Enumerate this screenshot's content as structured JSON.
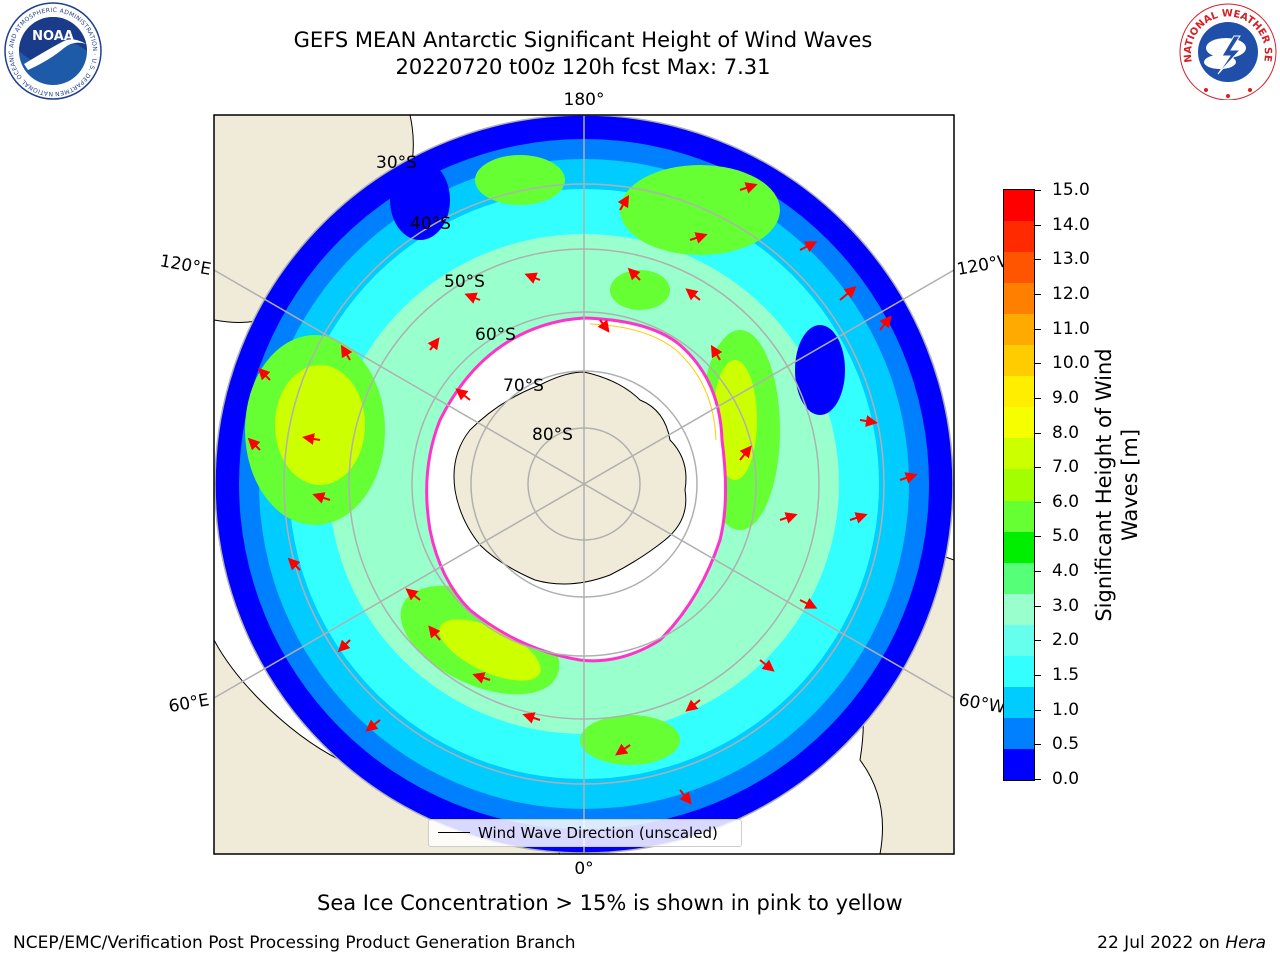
{
  "title": {
    "line1": "GEFS MEAN Antarctic Significant Height of Wind Waves",
    "line2": "20220720 t00z 120h fcst   Max: 7.31"
  },
  "map": {
    "projection": "south-polar-stereographic",
    "meridian_labels": [
      "180°",
      "120°E",
      "120°W",
      "60°E",
      "60°W",
      "0°"
    ],
    "latitude_labels": [
      "30°S",
      "40°S",
      "50°S",
      "60°S",
      "70°S",
      "80°S"
    ],
    "legend_label": "Wind Wave Direction (unscaled)",
    "arrow_color": "#ff0000",
    "land_color": "#efebd8",
    "ice_edge_colors": [
      "#ff33cc",
      "#ffcc00"
    ]
  },
  "colorbar": {
    "title": "Significant Height of Wind Waves [m]",
    "title_line1": "Significant Height of Wind",
    "title_line2": "Waves [m]",
    "ticks": [
      "15.0",
      "14.0",
      "13.0",
      "12.0",
      "11.0",
      "10.0",
      "9.0",
      "8.0",
      "7.0",
      "6.0",
      "5.0",
      "4.0",
      "3.0",
      "2.0",
      "1.5",
      "1.0",
      "0.5",
      "0.0"
    ],
    "colors_top_to_bottom": [
      "#ff0000",
      "#ff2a00",
      "#ff5500",
      "#ff7f00",
      "#ffaa00",
      "#ffcc00",
      "#ffee00",
      "#f5ff00",
      "#ccff00",
      "#a3ff00",
      "#66ff33",
      "#00ee00",
      "#55ff77",
      "#99ffcc",
      "#66ffee",
      "#33ffff",
      "#00ccff",
      "#0080ff",
      "#0000ff"
    ]
  },
  "notes": {
    "ice": "Sea Ice Concentration > 15% is shown in pink to yellow"
  },
  "footer": {
    "left": "NCEP/EMC/Verification Post Processing Product Generation Branch",
    "date": "22 Jul 2022 on ",
    "machine": "Hera"
  },
  "logos": {
    "left": "NOAA",
    "left_ring": "NATIONAL OCEANIC AND ATMOSPHERIC ADMINISTRATION · U.S. DEPARTMENT OF COMMERCE",
    "right_ring": "NATIONAL WEATHER SERVICE"
  }
}
